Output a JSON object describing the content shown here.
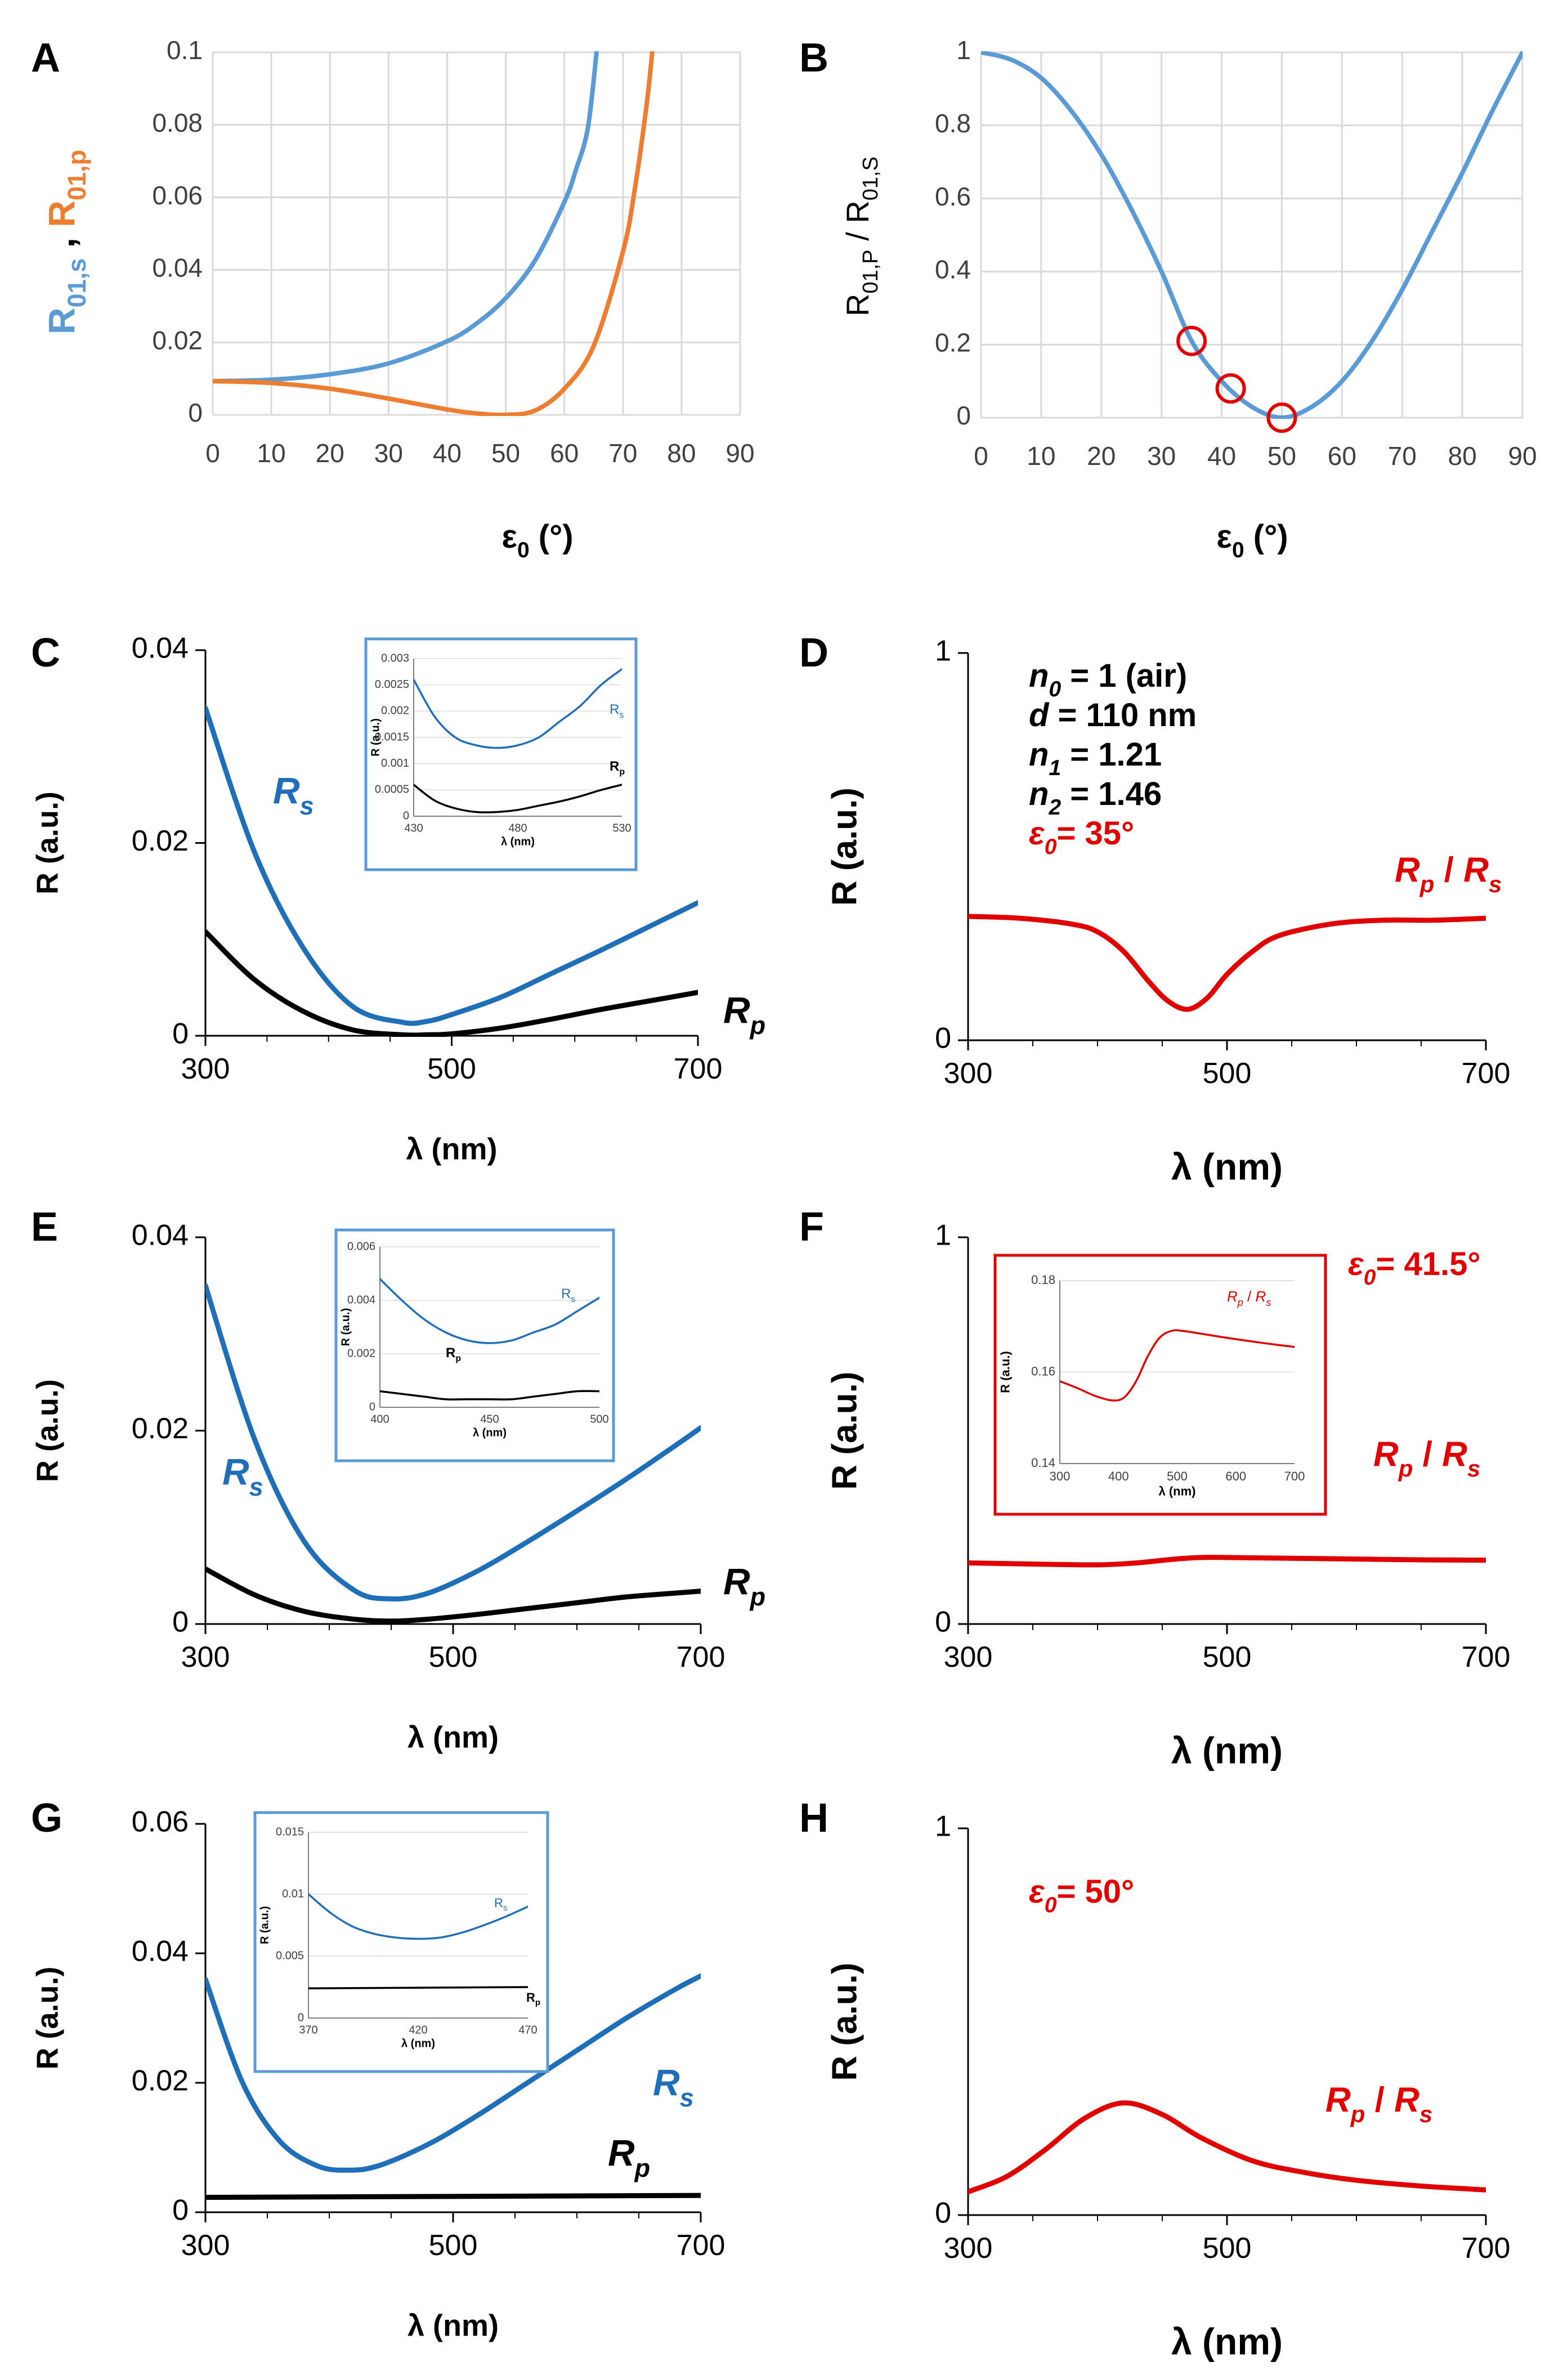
{
  "colors": {
    "rs_A": "#5b9bd5",
    "rp_A": "#ed7d31",
    "rs": "#1f6fb8",
    "rp": "#000000",
    "ratio": "#e00000",
    "marker": "#e00000"
  },
  "chart_data": [
    {
      "id": "A",
      "type": "line",
      "panel_label": "A",
      "xlabel": "ε0 (°)",
      "ylabel_s": "R01,s",
      "ylabel_sep": ",",
      "ylabel_p": "R01,p",
      "xlim": [
        0,
        90
      ],
      "ylim": [
        0,
        0.1
      ],
      "xticks": [
        "0",
        "10",
        "20",
        "30",
        "40",
        "50",
        "60",
        "70",
        "80",
        "90"
      ],
      "yticks": [
        "0",
        "0.02",
        "0.04",
        "0.06",
        "0.08",
        "0.1"
      ],
      "series": [
        {
          "name": "R01,s",
          "color": "#5b9bd5",
          "x": [
            0,
            10,
            20,
            30,
            40,
            45,
            50,
            55,
            60,
            62,
            64,
            65.5
          ],
          "y": [
            0.0093,
            0.0097,
            0.0112,
            0.0142,
            0.0203,
            0.0252,
            0.0322,
            0.0426,
            0.0587,
            0.0677,
            0.079,
            0.1
          ]
        },
        {
          "name": "R01,p",
          "color": "#ed7d31",
          "x": [
            0,
            10,
            20,
            30,
            40,
            45,
            50,
            55,
            60,
            65,
            70,
            72,
            74,
            75
          ],
          "y": [
            0.0093,
            0.0088,
            0.0072,
            0.0045,
            0.0015,
            0.0004,
            0.0,
            0.0012,
            0.0072,
            0.019,
            0.045,
            0.062,
            0.085,
            0.1
          ]
        }
      ]
    },
    {
      "id": "B",
      "type": "line",
      "panel_label": "B",
      "xlabel": "ε0 (°)",
      "ylabel": "R01,P / R01,S",
      "xlim": [
        0,
        90
      ],
      "ylim": [
        0,
        1
      ],
      "xticks": [
        "0",
        "10",
        "20",
        "30",
        "40",
        "50",
        "60",
        "70",
        "80",
        "90"
      ],
      "yticks": [
        "0",
        "0.2",
        "0.4",
        "0.6",
        "0.8",
        "1"
      ],
      "series": [
        {
          "name": "R01,P / R01,S",
          "color": "#5b9bd5",
          "x": [
            0,
            5,
            10,
            15,
            20,
            25,
            30,
            35,
            40,
            45,
            50,
            55,
            60,
            65,
            70,
            75,
            80,
            85,
            90
          ],
          "y": [
            1.0,
            0.98,
            0.93,
            0.84,
            0.72,
            0.57,
            0.4,
            0.21,
            0.1,
            0.03,
            0.0,
            0.03,
            0.1,
            0.21,
            0.35,
            0.51,
            0.67,
            0.84,
            1.0
          ]
        }
      ],
      "markers": [
        {
          "x": 35,
          "y": 0.21
        },
        {
          "x": 41.5,
          "y": 0.08
        },
        {
          "x": 50,
          "y": 0.0
        }
      ]
    },
    {
      "id": "C",
      "type": "line",
      "panel_label": "C",
      "xlabel": "λ (nm)",
      "ylabel": "R (a.u.)",
      "xlim": [
        300,
        700
      ],
      "ylim": [
        0,
        0.04
      ],
      "xticks": [
        "300",
        "500",
        "700"
      ],
      "yticks": [
        "0",
        "0.02",
        "0.04"
      ],
      "series": [
        {
          "name": "Rs",
          "label_main": "R",
          "label_sub": "s",
          "color": "#1f6fb8",
          "x": [
            300,
            340,
            380,
            420,
            460,
            480,
            500,
            540,
            580,
            620,
            660,
            700
          ],
          "y": [
            0.034,
            0.019,
            0.009,
            0.003,
            0.0014,
            0.0015,
            0.0022,
            0.004,
            0.0064,
            0.0088,
            0.0113,
            0.0138
          ]
        },
        {
          "name": "Rp",
          "label_main": "R",
          "label_sub": "p",
          "color": "#000000",
          "x": [
            300,
            340,
            380,
            420,
            460,
            480,
            500,
            540,
            580,
            620,
            660,
            700
          ],
          "y": [
            0.0108,
            0.0058,
            0.0025,
            0.0006,
            0.0001,
            0.0001,
            0.0002,
            0.0008,
            0.0017,
            0.0027,
            0.0036,
            0.0045
          ]
        }
      ],
      "inset": {
        "xlabel": "λ (nm)",
        "ylabel": "R (a.u.)",
        "xlim": [
          430,
          530
        ],
        "ylim": [
          0,
          0.003
        ],
        "xticks": [
          "430",
          "480",
          "530"
        ],
        "yticks": [
          "0",
          "0.0005",
          "0.001",
          "0.0015",
          "0.002",
          "0.0025",
          "0.003"
        ],
        "series": [
          {
            "name": "Rs",
            "label_main": "R",
            "label_sub": "s",
            "color": "#1f6fb8",
            "x": [
              430,
              440,
              450,
              460,
              470,
              480,
              490,
              500,
              510,
              520,
              530
            ],
            "y": [
              0.0026,
              0.0019,
              0.0015,
              0.00135,
              0.0013,
              0.00135,
              0.0015,
              0.0018,
              0.0021,
              0.0025,
              0.0028
            ]
          },
          {
            "name": "Rp",
            "label_main": "R",
            "label_sub": "p",
            "color": "#000000",
            "x": [
              430,
              440,
              450,
              460,
              470,
              480,
              490,
              500,
              510,
              520,
              530
            ],
            "y": [
              0.0006,
              0.0003,
              0.00015,
              8e-05,
              8e-05,
              0.00012,
              0.0002,
              0.00028,
              0.00038,
              0.0005,
              0.0006
            ]
          }
        ]
      }
    },
    {
      "id": "D",
      "type": "line",
      "panel_label": "D",
      "xlabel": "λ (nm)",
      "ylabel": "R (a.u.)",
      "xlim": [
        300,
        700
      ],
      "ylim": [
        0,
        1
      ],
      "xticks": [
        "300",
        "500",
        "700"
      ],
      "yticks": [
        "0",
        "1"
      ],
      "params": [
        {
          "sym": "n",
          "sub": "0",
          "val": "= 1 (air)"
        },
        {
          "sym": "d",
          "sub": "",
          "val": "= 110 nm"
        },
        {
          "sym": "n",
          "sub": "1",
          "val": "= 1.21"
        },
        {
          "sym": "n",
          "sub": "2",
          "val": "= 1.46"
        }
      ],
      "angle": {
        "sym": "ε",
        "sub": "0",
        "val": "= 35°"
      },
      "ratio_label": {
        "a": "R",
        "a_sub": "p",
        "sep": " / ",
        "b": "R",
        "b_sub": "s"
      },
      "series": [
        {
          "name": "Rp / Rs",
          "color": "#e00000",
          "x": [
            300,
            340,
            380,
            400,
            420,
            440,
            455,
            470,
            485,
            500,
            520,
            540,
            580,
            620,
            660,
            700
          ],
          "y": [
            0.32,
            0.315,
            0.3,
            0.28,
            0.23,
            0.15,
            0.1,
            0.08,
            0.11,
            0.17,
            0.23,
            0.27,
            0.3,
            0.31,
            0.31,
            0.315
          ]
        }
      ]
    },
    {
      "id": "E",
      "type": "line",
      "panel_label": "E",
      "xlabel": "λ (nm)",
      "ylabel": "R (a.u.)",
      "xlim": [
        300,
        700
      ],
      "ylim": [
        0,
        0.04
      ],
      "xticks": [
        "300",
        "500",
        "700"
      ],
      "yticks": [
        "0",
        "0.02",
        "0.04"
      ],
      "series": [
        {
          "name": "Rs",
          "label_main": "R",
          "label_sub": "s",
          "color": "#1f6fb8",
          "x": [
            300,
            340,
            380,
            420,
            450,
            480,
            520,
            560,
            600,
            640,
            680,
            700
          ],
          "y": [
            0.035,
            0.019,
            0.0085,
            0.0035,
            0.0026,
            0.0032,
            0.0055,
            0.0085,
            0.0117,
            0.015,
            0.0185,
            0.0203
          ]
        },
        {
          "name": "Rp",
          "label_main": "R",
          "label_sub": "p",
          "color": "#000000",
          "x": [
            300,
            340,
            380,
            420,
            450,
            480,
            520,
            560,
            600,
            640,
            680,
            700
          ],
          "y": [
            0.0057,
            0.003,
            0.0013,
            0.0005,
            0.0003,
            0.0005,
            0.001,
            0.0016,
            0.0022,
            0.0028,
            0.0032,
            0.0034
          ]
        }
      ],
      "inset": {
        "xlabel": "λ (nm)",
        "ylabel": "R (a.u.)",
        "xlim": [
          400,
          500
        ],
        "ylim": [
          0,
          0.006
        ],
        "xticks": [
          "400",
          "450",
          "500"
        ],
        "yticks": [
          "0",
          "0.002",
          "0.004",
          "0.006"
        ],
        "series": [
          {
            "name": "Rs",
            "label_main": "R",
            "label_sub": "s",
            "color": "#1f6fb8",
            "x": [
              400,
              410,
              420,
              430,
              440,
              450,
              460,
              470,
              480,
              490,
              500
            ],
            "y": [
              0.0048,
              0.004,
              0.0033,
              0.0028,
              0.0025,
              0.0024,
              0.0025,
              0.0028,
              0.0031,
              0.0036,
              0.0041
            ]
          },
          {
            "name": "Rp",
            "label_main": "R",
            "label_sub": "p",
            "color": "#000000",
            "x": [
              400,
              410,
              420,
              430,
              440,
              450,
              460,
              470,
              480,
              490,
              500
            ],
            "y": [
              0.0006,
              0.0005,
              0.0004,
              0.0003,
              0.0003,
              0.0003,
              0.0003,
              0.0004,
              0.0005,
              0.0006,
              0.0006
            ]
          }
        ]
      }
    },
    {
      "id": "F",
      "type": "line",
      "panel_label": "F",
      "xlabel": "λ (nm)",
      "ylabel": "R (a.u.)",
      "xlim": [
        300,
        700
      ],
      "ylim": [
        0,
        1
      ],
      "xticks": [
        "300",
        "500",
        "700"
      ],
      "yticks": [
        "0",
        "1"
      ],
      "angle": {
        "sym": "ε",
        "sub": "0",
        "val": "= 41.5°"
      },
      "ratio_label": {
        "a": "R",
        "a_sub": "p",
        "sep": " / ",
        "b": "R",
        "b_sub": "s"
      },
      "series": [
        {
          "name": "Rp / Rs",
          "color": "#e00000",
          "x": [
            300,
            350,
            400,
            430,
            460,
            480,
            500,
            550,
            600,
            650,
            700
          ],
          "y": [
            0.158,
            0.155,
            0.153,
            0.158,
            0.168,
            0.172,
            0.172,
            0.17,
            0.168,
            0.166,
            0.165
          ]
        }
      ],
      "inset": {
        "xlabel": "λ (nm)",
        "ylabel": "R (a.u.)",
        "xlim": [
          300,
          700
        ],
        "ylim": [
          0.14,
          0.18
        ],
        "xticks": [
          "300",
          "400",
          "500",
          "600",
          "700"
        ],
        "yticks": [
          "0.14",
          "0.16",
          "0.18"
        ],
        "ratio_label": {
          "a": "R",
          "a_sub": "p",
          "sep": " / ",
          "b": "R",
          "b_sub": "s"
        },
        "series": [
          {
            "name": "Rp / Rs",
            "color": "#e00000",
            "x": [
              300,
              330,
              360,
              390,
              410,
              430,
              450,
              470,
              490,
              510,
              550,
              600,
              650,
              700
            ],
            "y": [
              0.158,
              0.1565,
              0.1548,
              0.1538,
              0.1545,
              0.158,
              0.1635,
              0.1675,
              0.169,
              0.169,
              0.1682,
              0.1672,
              0.1663,
              0.1655
            ]
          }
        ]
      }
    },
    {
      "id": "G",
      "type": "line",
      "panel_label": "G",
      "xlabel": "λ (nm)",
      "ylabel": "R (a.u.)",
      "xlim": [
        300,
        700
      ],
      "ylim": [
        0,
        0.06
      ],
      "xticks": [
        "300",
        "500",
        "700"
      ],
      "yticks": [
        "0",
        "0.02",
        "0.04",
        "0.06"
      ],
      "series": [
        {
          "name": "Rs",
          "label_main": "R",
          "label_sub": "s",
          "color": "#1f6fb8",
          "x": [
            300,
            330,
            360,
            390,
            415,
            440,
            480,
            520,
            560,
            600,
            640,
            680,
            700
          ],
          "y": [
            0.036,
            0.02,
            0.011,
            0.0072,
            0.0065,
            0.0072,
            0.0105,
            0.015,
            0.02,
            0.025,
            0.03,
            0.0345,
            0.0365
          ]
        },
        {
          "name": "Rp",
          "label_main": "R",
          "label_sub": "p",
          "color": "#000000",
          "x": [
            300,
            700
          ],
          "y": [
            0.0023,
            0.0026
          ]
        }
      ],
      "inset": {
        "xlabel": "λ (nm)",
        "ylabel": "R (a.u.)",
        "xlim": [
          370,
          470
        ],
        "ylim": [
          0,
          0.015
        ],
        "xticks": [
          "370",
          "420",
          "470"
        ],
        "yticks": [
          "0",
          "0.005",
          "0.01",
          "0.015"
        ],
        "series": [
          {
            "name": "Rs",
            "label_main": "R",
            "label_sub": "s",
            "color": "#1f6fb8",
            "x": [
              370,
              380,
              390,
              400,
              410,
              420,
              430,
              440,
              450,
              460,
              470
            ],
            "y": [
              0.01,
              0.0085,
              0.0074,
              0.0068,
              0.0065,
              0.0064,
              0.0065,
              0.0069,
              0.0075,
              0.0082,
              0.009
            ]
          },
          {
            "name": "Rp",
            "label_main": "R",
            "label_sub": "p",
            "color": "#000000",
            "x": [
              370,
              470
            ],
            "y": [
              0.0024,
              0.0025
            ]
          }
        ]
      }
    },
    {
      "id": "H",
      "type": "line",
      "panel_label": "H",
      "xlabel": "λ (nm)",
      "ylabel": "R (a.u.)",
      "xlim": [
        300,
        700
      ],
      "ylim": [
        0,
        1
      ],
      "xticks": [
        "300",
        "500",
        "700"
      ],
      "yticks": [
        "0",
        "1"
      ],
      "angle": {
        "sym": "ε",
        "sub": "0",
        "val": "= 50°"
      },
      "ratio_label": {
        "a": "R",
        "a_sub": "p",
        "sep": " / ",
        "b": "R",
        "b_sub": "s"
      },
      "series": [
        {
          "name": "Rp / Rs",
          "color": "#e00000",
          "x": [
            300,
            330,
            360,
            390,
            420,
            450,
            480,
            520,
            560,
            600,
            650,
            700
          ],
          "y": [
            0.06,
            0.1,
            0.17,
            0.25,
            0.29,
            0.26,
            0.2,
            0.14,
            0.11,
            0.09,
            0.075,
            0.065
          ]
        }
      ]
    }
  ]
}
